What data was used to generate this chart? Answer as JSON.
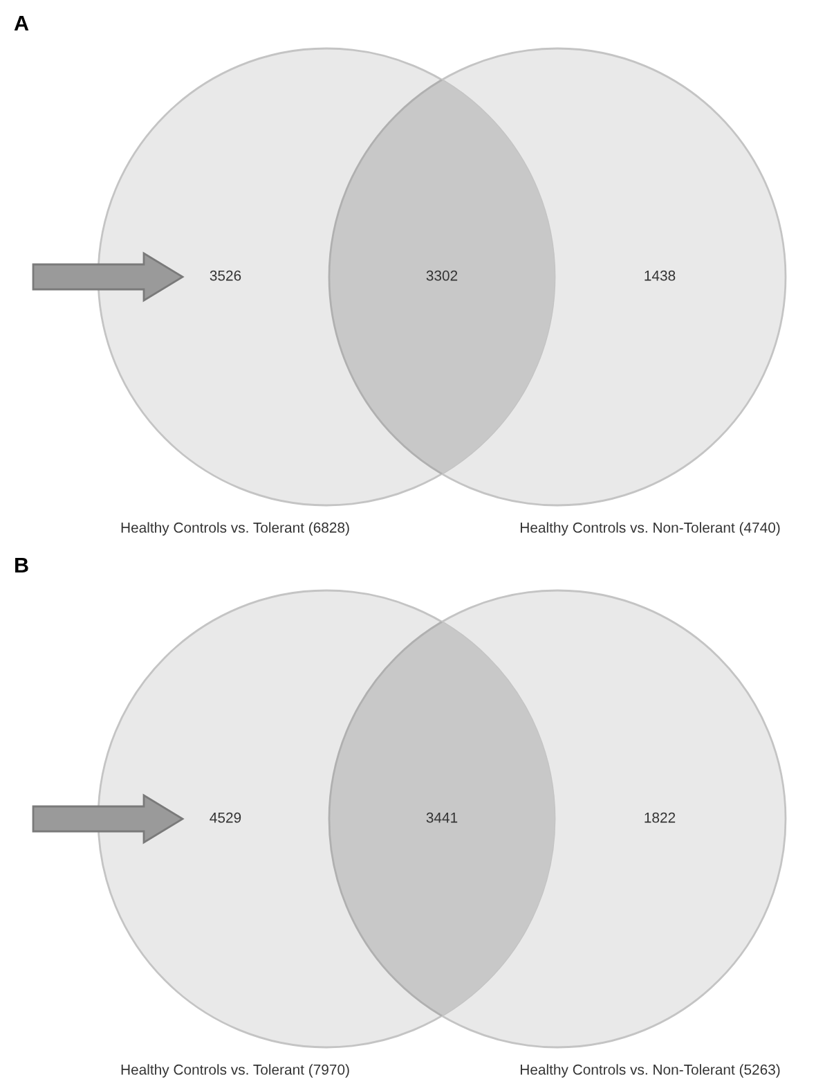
{
  "chart_data": [
    {
      "type": "other",
      "title": "A",
      "data_labels": true,
      "categories": [
        "Healthy Controls vs. Tolerant (6828)",
        null,
        "Healthy Controls vs. Non-Tolerant (4740)"
      ],
      "values": [
        3526,
        3302,
        1438
      ],
      "colors": [
        "#e9e9e9",
        "#c8c8c8",
        "#e9e9e9"
      ]
    },
    {
      "type": "other",
      "title": "B",
      "data_labels": true,
      "categories": [
        "Healthy Controls vs. Tolerant (7970)",
        null,
        "Healthy Controls vs. Non-Tolerant (5263)"
      ],
      "values": [
        4529,
        3441,
        1822
      ],
      "colors": [
        "#e9e9e9",
        "#c8c8c8",
        "#e9e9e9"
      ]
    }
  ]
}
